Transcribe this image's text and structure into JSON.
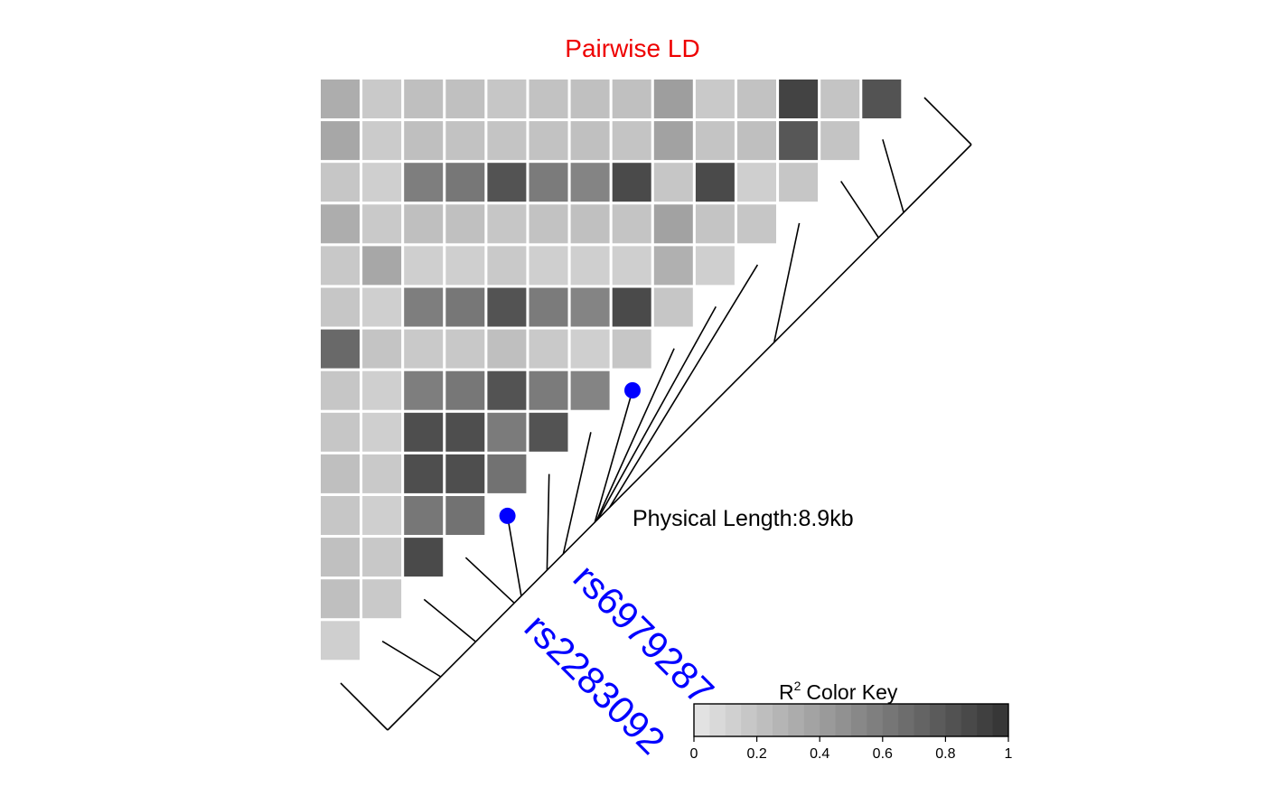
{
  "chart_data": {
    "type": "heatmap",
    "title": "Pairwise LD",
    "physical_length_label": "Physical Length:8.9kb",
    "snp_count": 15,
    "highlight_snps": [
      {
        "label": "rs6979287",
        "index": 7
      },
      {
        "label": "rs2283092",
        "index": 4
      }
    ],
    "matrix_r2": [
      [
        0.32,
        0.16,
        0.22,
        0.21,
        0.18,
        0.2,
        0.21,
        0.21,
        0.4,
        0.16,
        0.2,
        0.91,
        0.19,
        0.82
      ],
      [
        0.35,
        0.15,
        0.22,
        0.2,
        0.19,
        0.2,
        0.21,
        0.19,
        0.38,
        0.19,
        0.22,
        0.8,
        0.19
      ],
      [
        0.18,
        0.13,
        0.58,
        0.62,
        0.82,
        0.6,
        0.55,
        0.87,
        0.18,
        0.87,
        0.13,
        0.18
      ],
      [
        0.32,
        0.16,
        0.22,
        0.21,
        0.18,
        0.2,
        0.21,
        0.19,
        0.38,
        0.19,
        0.18
      ],
      [
        0.17,
        0.35,
        0.13,
        0.13,
        0.16,
        0.13,
        0.13,
        0.13,
        0.3,
        0.13
      ],
      [
        0.18,
        0.13,
        0.58,
        0.62,
        0.82,
        0.6,
        0.55,
        0.87,
        0.18
      ],
      [
        0.7,
        0.19,
        0.16,
        0.17,
        0.22,
        0.16,
        0.13,
        0.18
      ],
      [
        0.18,
        0.13,
        0.58,
        0.62,
        0.82,
        0.6,
        0.55
      ],
      [
        0.18,
        0.13,
        0.85,
        0.85,
        0.6,
        0.82
      ],
      [
        0.22,
        0.16,
        0.85,
        0.85,
        0.65
      ],
      [
        0.18,
        0.13,
        0.62,
        0.65
      ],
      [
        0.21,
        0.17,
        0.87
      ],
      [
        0.22,
        0.16
      ],
      [
        0.13
      ]
    ],
    "color_key": {
      "title": "Color Key",
      "title_prefix": "R",
      "title_superscript": "2",
      "ticks": [
        "0",
        "0.2",
        "0.4",
        "0.6",
        "0.8",
        "1"
      ],
      "range": [
        0,
        1
      ],
      "low_color": "#e6e6e6",
      "high_color": "#333333"
    },
    "colors": {
      "title": "#ee0000",
      "highlight": "#0000ff",
      "lines": "#000000"
    }
  }
}
